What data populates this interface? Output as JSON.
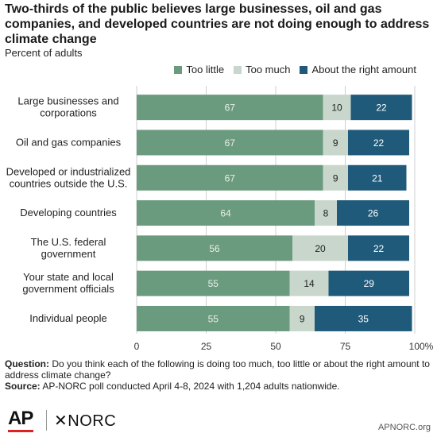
{
  "header": {
    "title": "Two-thirds of the public believes large businesses, oil and gas companies, and developed countries are not doing enough to address climate change",
    "subtitle": "Percent of adults"
  },
  "chart_data": {
    "type": "bar",
    "orientation": "horizontal",
    "stacked": true,
    "categories": [
      [
        "Large businesses and",
        "corporations"
      ],
      [
        "Oil and gas companies"
      ],
      [
        "Developed or industrialized",
        "countries outside the U.S."
      ],
      [
        "Developing countries"
      ],
      [
        "The U.S. federal",
        "government"
      ],
      [
        "Your state and local",
        "government officials"
      ],
      [
        "Individual people"
      ]
    ],
    "series": [
      {
        "name": "Too little",
        "color": "#6b9b7f",
        "label_color": "#e8f0ea",
        "values": [
          67,
          67,
          67,
          64,
          56,
          55,
          55
        ]
      },
      {
        "name": "Too much",
        "color": "#c8d6cc",
        "label_color": "#222222",
        "values": [
          10,
          9,
          9,
          8,
          20,
          14,
          9
        ]
      },
      {
        "name": "About the right amount",
        "color": "#1f5a7a",
        "label_color": "#ffffff",
        "values": [
          22,
          22,
          21,
          26,
          22,
          29,
          35
        ]
      }
    ],
    "xlim": [
      0,
      100
    ],
    "x_ticks": [
      "0",
      "25",
      "50",
      "75",
      "100%"
    ],
    "x_tick_values": [
      0,
      25,
      50,
      75,
      100
    ],
    "grid": true,
    "legend_position": "top-right"
  },
  "footer": {
    "question_label": "Question:",
    "question_text": "Do you think each of the following is doing too much, too little or about the right amount to address climate change?",
    "source_label": "Source:",
    "source_text": "AP-NORC poll conducted April 4-8, 2024 with 1,204 adults nationwide."
  },
  "branding": {
    "ap_logo": "AP",
    "norc_logo": "✕NORC",
    "site": "APNORC.org"
  }
}
